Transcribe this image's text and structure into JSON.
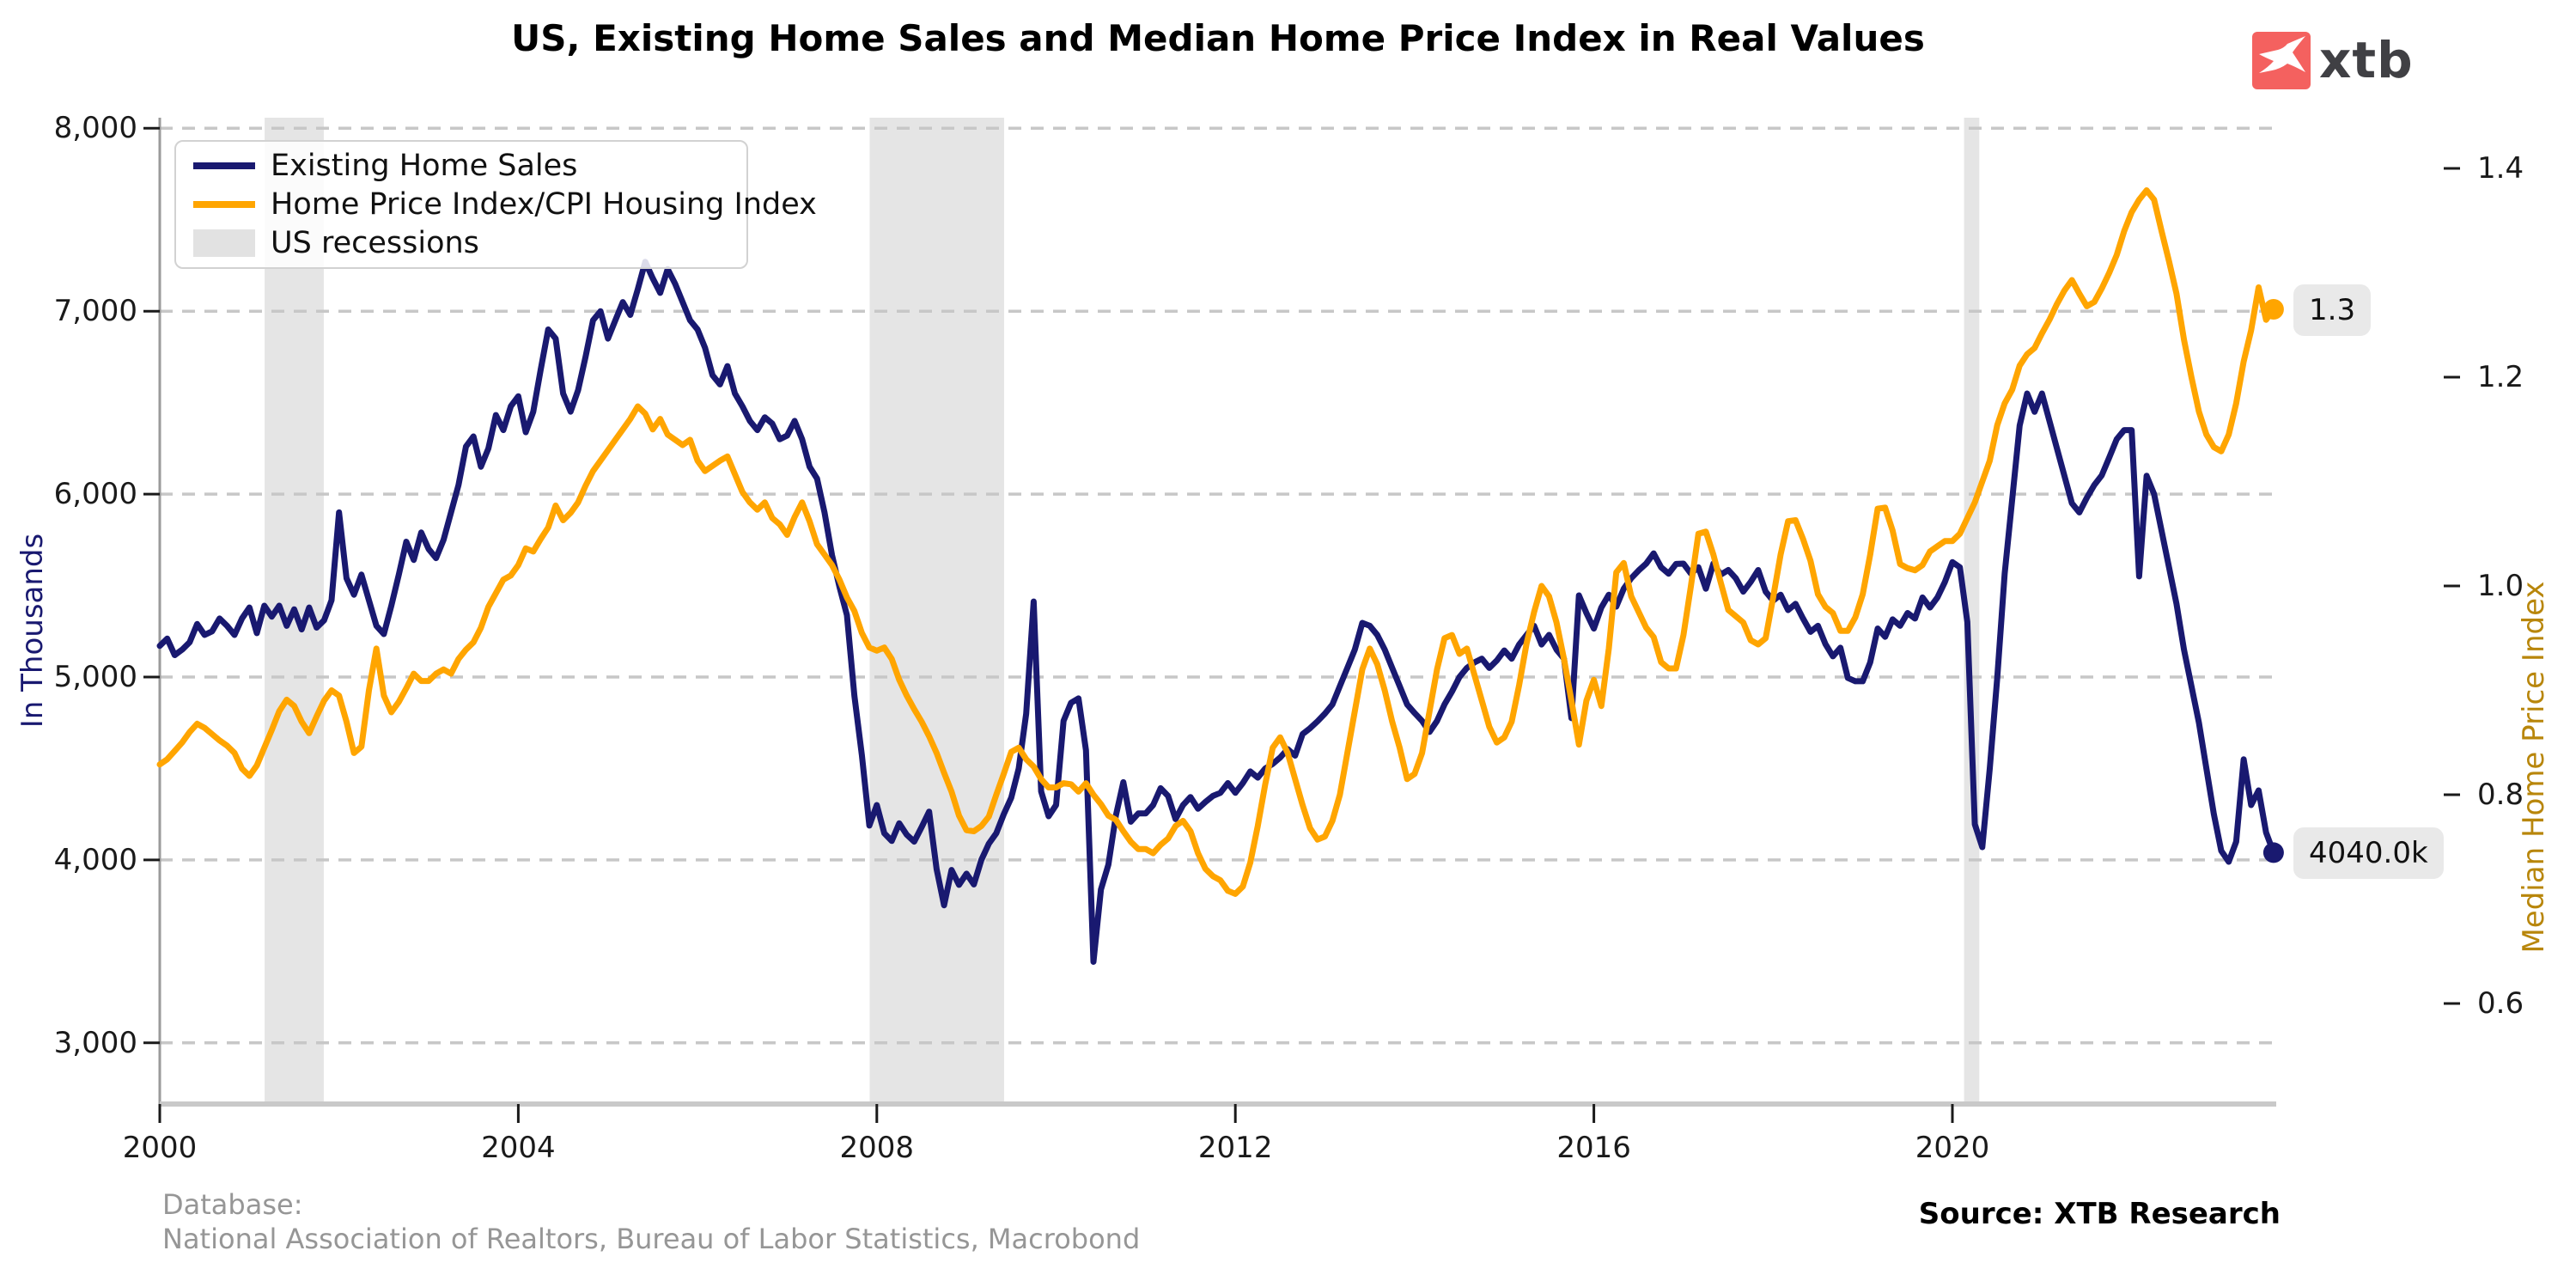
{
  "title": "US, Existing Home Sales and Median Home Price Index in Real Values",
  "logo": {
    "text": "xtb"
  },
  "legend": {
    "items": [
      {
        "label": "Existing Home Sales",
        "swatch": "line",
        "color": "#191970"
      },
      {
        "label": "Home Price Index/CPI Housing Index",
        "swatch": "line",
        "color": "#FFA500"
      },
      {
        "label": "US recessions",
        "swatch": "box",
        "color": "#e2e2e2"
      }
    ]
  },
  "end_labels": {
    "price_index": "1.3",
    "home_sales": "4040.0k"
  },
  "footer": {
    "database_label": "Database:",
    "database_sources": "National Association of Realtors, Bureau of Labor Statistics, Macrobond",
    "source": "Source: XTB Research"
  },
  "chart_data": {
    "type": "line",
    "title": "US, Existing Home Sales and Median Home Price Index in Real Values",
    "x_start_year": 2000,
    "x_step_months": 1,
    "x_ticks": [
      2000,
      2004,
      2008,
      2012,
      2016,
      2020
    ],
    "grid": "dashed-horizontal",
    "legend_position": "top-left",
    "left_axis": {
      "label": "In Thousands",
      "ticks": [
        8000,
        7000,
        6000,
        5000,
        4000,
        3000
      ],
      "range": [
        3000,
        8000
      ]
    },
    "right_axis": {
      "label": "Median Home Price Index",
      "ticks": [
        1.4,
        1.2,
        1.0,
        0.8,
        0.6
      ],
      "range": [
        0.55,
        1.45
      ]
    },
    "recession_color": "#e5e5e5",
    "recessions": [
      [
        2001.17,
        2001.83
      ],
      [
        2007.92,
        2009.42
      ],
      [
        2020.13,
        2020.3
      ]
    ],
    "series": [
      {
        "name": "Existing Home Sales",
        "axis": "left",
        "color": "#191970",
        "end_label": "4040.0k",
        "values": [
          5170,
          5210,
          5120,
          5150,
          5190,
          5290,
          5230,
          5250,
          5320,
          5280,
          5230,
          5320,
          5380,
          5240,
          5390,
          5330,
          5390,
          5280,
          5370,
          5260,
          5380,
          5270,
          5310,
          5420,
          5900,
          5540,
          5450,
          5560,
          5420,
          5280,
          5235,
          5390,
          5560,
          5740,
          5640,
          5790,
          5700,
          5650,
          5750,
          5900,
          6050,
          6260,
          6315,
          6150,
          6250,
          6432,
          6350,
          6480,
          6535,
          6338,
          6450,
          6681,
          6900,
          6850,
          6550,
          6451,
          6568,
          6750,
          6950,
          7000,
          6850,
          6950,
          7050,
          6980,
          7120,
          7270,
          7180,
          7100,
          7230,
          7150,
          7050,
          6950,
          6900,
          6800,
          6650,
          6600,
          6700,
          6550,
          6480,
          6400,
          6350,
          6420,
          6385,
          6300,
          6320,
          6400,
          6300,
          6150,
          6085,
          5900,
          5667,
          5493,
          5338,
          4897,
          4573,
          4188,
          4300,
          4146,
          4104,
          4200,
          4138,
          4100,
          4180,
          4264,
          3950,
          3752,
          3945,
          3864,
          3925,
          3866,
          4000,
          4089,
          4146,
          4250,
          4340,
          4500,
          4800,
          5413,
          4375,
          4239,
          4300,
          4760,
          4859,
          4883,
          4600,
          3443,
          3838,
          3974,
          4242,
          4425,
          4209,
          4254,
          4254,
          4300,
          4392,
          4350,
          4223,
          4300,
          4344,
          4280,
          4317,
          4350,
          4367,
          4420,
          4367,
          4420,
          4484,
          4450,
          4500,
          4525,
          4560,
          4606,
          4570,
          4688,
          4720,
          4758,
          4800,
          4850,
          4950,
          5050,
          5150,
          5296,
          5280,
          5230,
          5150,
          5050,
          4950,
          4850,
          4803,
          4760,
          4700,
          4760,
          4850,
          4920,
          5000,
          5050,
          5080,
          5100,
          5050,
          5090,
          5145,
          5100,
          5178,
          5230,
          5280,
          5178,
          5230,
          5150,
          5100,
          4775,
          5446,
          5350,
          5265,
          5380,
          5450,
          5385,
          5483,
          5540,
          5583,
          5620,
          5676,
          5600,
          5565,
          5618,
          5620,
          5565,
          5600,
          5483,
          5620,
          5560,
          5585,
          5540,
          5467,
          5520,
          5585,
          5467,
          5417,
          5450,
          5366,
          5400,
          5320,
          5247,
          5280,
          5180,
          5113,
          5160,
          4995,
          4977,
          4977,
          5080,
          5265,
          5220,
          5315,
          5280,
          5350,
          5320,
          5435,
          5380,
          5435,
          5520,
          5628,
          5600,
          5300,
          4195,
          4070,
          4500,
          4995,
          5567,
          5970,
          6375,
          6550,
          6450,
          6550,
          6400,
          6250,
          6100,
          5950,
          5900,
          5980,
          6050,
          6103,
          6200,
          6300,
          6350,
          6350,
          5550,
          6100,
          6000,
          5800,
          5600,
          5400,
          5150,
          4950,
          4750,
          4500,
          4250,
          4050,
          3990,
          4100,
          4550,
          4300,
          4380,
          4150,
          4040
        ]
      },
      {
        "name": "Home Price Index/CPI Housing Index",
        "axis": "right",
        "color": "#FFA500",
        "end_label": "1.3",
        "values": [
          0.829,
          0.834,
          0.842,
          0.85,
          0.86,
          0.868,
          0.864,
          0.858,
          0.852,
          0.847,
          0.84,
          0.825,
          0.818,
          0.828,
          0.845,
          0.862,
          0.88,
          0.891,
          0.885,
          0.87,
          0.859,
          0.875,
          0.89,
          0.9,
          0.895,
          0.87,
          0.84,
          0.846,
          0.9,
          0.94,
          0.895,
          0.879,
          0.889,
          0.902,
          0.916,
          0.909,
          0.909,
          0.916,
          0.92,
          0.916,
          0.93,
          0.939,
          0.946,
          0.96,
          0.98,
          0.993,
          1.006,
          1.01,
          1.02,
          1.036,
          1.033,
          1.045,
          1.056,
          1.077,
          1.063,
          1.07,
          1.08,
          1.096,
          1.11,
          1.12,
          1.13,
          1.14,
          1.15,
          1.16,
          1.172,
          1.165,
          1.15,
          1.16,
          1.145,
          1.14,
          1.135,
          1.14,
          1.12,
          1.11,
          1.115,
          1.12,
          1.124,
          1.107,
          1.09,
          1.08,
          1.073,
          1.08,
          1.065,
          1.059,
          1.049,
          1.066,
          1.08,
          1.062,
          1.04,
          1.03,
          1.02,
          1.006,
          0.989,
          0.976,
          0.955,
          0.941,
          0.938,
          0.941,
          0.93,
          0.91,
          0.895,
          0.882,
          0.87,
          0.856,
          0.84,
          0.821,
          0.803,
          0.78,
          0.766,
          0.765,
          0.77,
          0.779,
          0.8,
          0.82,
          0.841,
          0.845,
          0.834,
          0.827,
          0.815,
          0.807,
          0.807,
          0.811,
          0.81,
          0.803,
          0.811,
          0.8,
          0.791,
          0.78,
          0.776,
          0.765,
          0.755,
          0.748,
          0.748,
          0.744,
          0.752,
          0.758,
          0.77,
          0.775,
          0.765,
          0.744,
          0.729,
          0.722,
          0.718,
          0.708,
          0.705,
          0.712,
          0.735,
          0.77,
          0.81,
          0.845,
          0.855,
          0.84,
          0.815,
          0.79,
          0.768,
          0.757,
          0.76,
          0.775,
          0.8,
          0.84,
          0.88,
          0.92,
          0.94,
          0.925,
          0.9,
          0.87,
          0.845,
          0.815,
          0.82,
          0.84,
          0.88,
          0.92,
          0.95,
          0.953,
          0.935,
          0.94,
          0.915,
          0.89,
          0.865,
          0.85,
          0.855,
          0.87,
          0.905,
          0.945,
          0.975,
          1.0,
          0.99,
          0.965,
          0.93,
          0.89,
          0.848,
          0.89,
          0.91,
          0.885,
          0.94,
          1.013,
          1.022,
          0.99,
          0.975,
          0.96,
          0.951,
          0.927,
          0.921,
          0.921,
          0.953,
          1.0,
          1.05,
          1.052,
          1.03,
          1.003,
          0.977,
          0.971,
          0.965,
          0.948,
          0.944,
          0.95,
          0.989,
          1.03,
          1.062,
          1.063,
          1.045,
          1.024,
          0.992,
          0.98,
          0.974,
          0.957,
          0.957,
          0.97,
          0.992,
          1.03,
          1.074,
          1.075,
          1.053,
          1.021,
          1.017,
          1.015,
          1.02,
          1.033,
          1.038,
          1.043,
          1.043,
          1.05,
          1.065,
          1.08,
          1.1,
          1.12,
          1.154,
          1.175,
          1.188,
          1.211,
          1.222,
          1.228,
          1.242,
          1.255,
          1.27,
          1.283,
          1.293,
          1.28,
          1.268,
          1.272,
          1.285,
          1.3,
          1.317,
          1.34,
          1.358,
          1.37,
          1.379,
          1.37,
          1.34,
          1.311,
          1.28,
          1.236,
          1.2,
          1.167,
          1.145,
          1.133,
          1.129,
          1.145,
          1.175,
          1.215,
          1.245,
          1.286,
          1.255,
          1.265
        ]
      }
    ]
  }
}
